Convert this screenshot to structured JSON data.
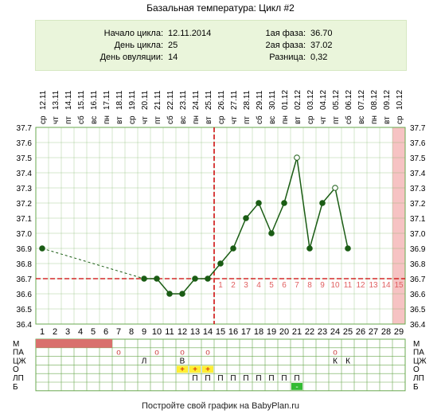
{
  "title": "Базальная температура: Цикл #2",
  "info": {
    "left": [
      {
        "label": "Начало цикла:",
        "value": "12.11.2014"
      },
      {
        "label": "День цикла:",
        "value": "25"
      },
      {
        "label": "День овуляции:",
        "value": "14"
      }
    ],
    "right": [
      {
        "label": "1ая фаза:",
        "value": "36.70"
      },
      {
        "label": "2ая фаза:",
        "value": "37.02"
      },
      {
        "label": "Разница:",
        "value": "0,32"
      }
    ]
  },
  "chart_data": {
    "type": "line",
    "title": "Базальная температура: Цикл #2",
    "dates": [
      "12.11",
      "13.11",
      "14.11",
      "15.11",
      "16.11",
      "17.11",
      "18.11",
      "19.11",
      "20.11",
      "21.11",
      "22.11",
      "23.11",
      "24.11",
      "25.11",
      "26.11",
      "27.11",
      "28.11",
      "29.11",
      "30.11",
      "01.12",
      "02.12",
      "03.12",
      "04.12",
      "05.12",
      "06.12",
      "07.12",
      "08.12",
      "09.12",
      "10.12"
    ],
    "weekdays": [
      "ср",
      "чт",
      "пт",
      "сб",
      "вс",
      "пн",
      "вт",
      "ср",
      "чт",
      "пт",
      "сб",
      "вс",
      "пн",
      "вт",
      "ср",
      "чт",
      "пт",
      "сб",
      "вс",
      "пн",
      "вт",
      "ср",
      "чт",
      "пт",
      "сб",
      "вс",
      "пн",
      "вт",
      "ср"
    ],
    "days": [
      1,
      2,
      3,
      4,
      5,
      6,
      7,
      8,
      9,
      10,
      11,
      12,
      13,
      14,
      15,
      16,
      17,
      18,
      19,
      20,
      21,
      22,
      23,
      24,
      25,
      26,
      27,
      28,
      29
    ],
    "ylim": [
      36.4,
      37.7
    ],
    "y_ticks": [
      "37.7",
      "37.6",
      "37.5",
      "37.4",
      "37.3",
      "37.2",
      "37.1",
      "37.0",
      "36.9",
      "36.8",
      "36.7",
      "36.6",
      "36.5",
      "36.4"
    ],
    "series": [
      {
        "values": [
          {
            "day": 1,
            "temp": 36.9
          },
          {
            "day": 9,
            "temp": 36.7
          },
          {
            "day": 10,
            "temp": 36.7
          },
          {
            "day": 11,
            "temp": 36.6
          },
          {
            "day": 12,
            "temp": 36.6
          },
          {
            "day": 13,
            "temp": 36.7
          },
          {
            "day": 14,
            "temp": 36.7
          },
          {
            "day": 15,
            "temp": 36.8
          },
          {
            "day": 16,
            "temp": 36.9
          },
          {
            "day": 17,
            "temp": 37.1
          },
          {
            "day": 18,
            "temp": 37.2
          },
          {
            "day": 19,
            "temp": 37.0
          },
          {
            "day": 20,
            "temp": 37.2
          },
          {
            "day": 21,
            "temp": 37.5
          },
          {
            "day": 22,
            "temp": 36.9
          },
          {
            "day": 23,
            "temp": 37.2
          },
          {
            "day": 24,
            "temp": 37.3
          },
          {
            "day": 25,
            "temp": 36.9
          }
        ]
      }
    ],
    "open_markers": [
      21,
      24
    ],
    "dashed_gap": [
      1,
      9
    ],
    "coverline": 36.7,
    "ovulation_day": 14,
    "moon_day": 13,
    "luteal_numbers": [
      "1",
      "2",
      "3",
      "4",
      "5",
      "6",
      "7",
      "8",
      "9",
      "10",
      "11",
      "12",
      "13",
      "14",
      "15"
    ],
    "highlight_day": 29,
    "colors": {
      "line": "#1a5c14",
      "dot": "#1a5c14",
      "coverline": "#cc0000",
      "ovulation": "#cc0000",
      "highlight": "#f6c3c3",
      "luteal_numbers": "#e06060",
      "grid": "#6aa84f",
      "menses": "#d9706d"
    }
  },
  "grid_rows": {
    "labels": [
      "М",
      "ПА",
      "ЦЖ",
      "О",
      "ЛП",
      "Б"
    ],
    "menses_days": [
      1,
      2,
      3,
      4,
      5,
      6
    ],
    "pa_marks": [
      {
        "day": 7,
        "text": "о"
      },
      {
        "day": 10,
        "text": "о"
      },
      {
        "day": 12,
        "text": "о"
      },
      {
        "day": 14,
        "text": "о"
      },
      {
        "day": 24,
        "text": "о"
      }
    ],
    "cj_marks": [
      {
        "day": 9,
        "text": "Л"
      },
      {
        "day": 12,
        "text": "В"
      },
      {
        "day": 24,
        "text": "К"
      },
      {
        "day": 25,
        "text": "К"
      }
    ],
    "o_marks": [
      {
        "day": 12,
        "text": "+"
      },
      {
        "day": 13,
        "text": "+"
      },
      {
        "day": 14,
        "text": "+"
      }
    ],
    "lp_marks": [
      {
        "day": 13,
        "text": "П"
      },
      {
        "day": 14,
        "text": "П"
      },
      {
        "day": 15,
        "text": "П"
      },
      {
        "day": 16,
        "text": "П"
      },
      {
        "day": 17,
        "text": "П"
      },
      {
        "day": 18,
        "text": "П"
      },
      {
        "day": 19,
        "text": "П"
      },
      {
        "day": 20,
        "text": "П"
      },
      {
        "day": 21,
        "text": "П"
      }
    ],
    "b_marks": [
      {
        "day": 21,
        "text": "-"
      }
    ]
  },
  "footer": "Постройте свой график на BabyPlan.ru"
}
